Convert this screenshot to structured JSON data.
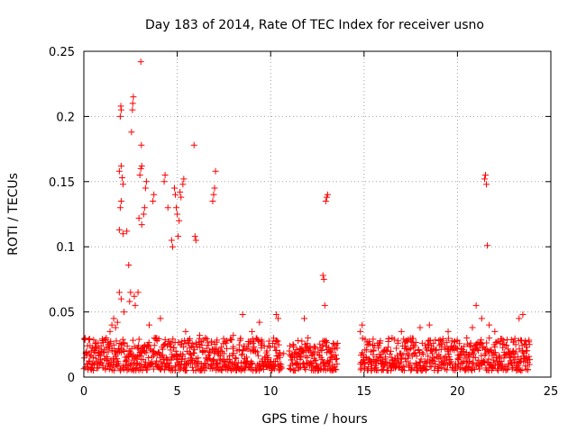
{
  "chart_data": {
    "type": "scatter",
    "title": "Day 183 of 2014, Rate Of TEC Index for receiver usno",
    "xlabel": "GPS time / hours",
    "ylabel": "ROTI / TECUs",
    "xlim": [
      0,
      25
    ],
    "ylim": [
      0,
      0.25
    ],
    "xticks": [
      0,
      5,
      10,
      15,
      20,
      25
    ],
    "xtick_labels": [
      "0",
      "5",
      "10",
      "15",
      "20",
      "25"
    ],
    "yticks": [
      0,
      0.05,
      0.1,
      0.15,
      0.2,
      0.25
    ],
    "ytick_labels": [
      "0",
      "0.05",
      "0.1",
      "0.15",
      "0.2",
      "0.25"
    ],
    "grid": true,
    "marker": "plus",
    "color": "#ff0000",
    "series": [
      {
        "name": "ROTI",
        "points": [
          [
            0.1,
            0.018
          ],
          [
            0.2,
            0.024
          ],
          [
            0.3,
            0.012
          ],
          [
            0.4,
            0.02
          ],
          [
            0.5,
            0.015
          ],
          [
            0.6,
            0.022
          ],
          [
            0.8,
            0.017
          ],
          [
            1.0,
            0.028
          ],
          [
            1.1,
            0.021
          ],
          [
            1.2,
            0.03
          ],
          [
            1.3,
            0.025
          ],
          [
            1.4,
            0.035
          ],
          [
            1.5,
            0.04
          ],
          [
            1.6,
            0.045
          ],
          [
            1.7,
            0.038
          ],
          [
            1.8,
            0.042
          ],
          [
            1.9,
            0.065
          ],
          [
            2.0,
            0.06
          ],
          [
            1.9,
            0.113
          ],
          [
            1.95,
            0.13
          ],
          [
            2.0,
            0.135
          ],
          [
            1.9,
            0.158
          ],
          [
            2.0,
            0.162
          ],
          [
            2.05,
            0.153
          ],
          [
            2.1,
            0.148
          ],
          [
            1.95,
            0.2
          ],
          [
            2.0,
            0.205
          ],
          [
            1.98,
            0.208
          ],
          [
            2.1,
            0.11
          ],
          [
            2.15,
            0.05
          ],
          [
            2.3,
            0.112
          ],
          [
            2.4,
            0.086
          ],
          [
            2.5,
            0.065
          ],
          [
            2.45,
            0.058
          ],
          [
            2.6,
            0.205
          ],
          [
            2.62,
            0.21
          ],
          [
            2.65,
            0.215
          ],
          [
            2.55,
            0.188
          ],
          [
            2.7,
            0.062
          ],
          [
            2.75,
            0.055
          ],
          [
            2.9,
            0.065
          ],
          [
            2.95,
            0.122
          ],
          [
            3.0,
            0.155
          ],
          [
            3.05,
            0.16
          ],
          [
            3.1,
            0.162
          ],
          [
            3.08,
            0.178
          ],
          [
            3.05,
            0.242
          ],
          [
            3.1,
            0.117
          ],
          [
            3.2,
            0.125
          ],
          [
            3.25,
            0.13
          ],
          [
            3.3,
            0.145
          ],
          [
            3.35,
            0.15
          ],
          [
            3.5,
            0.04
          ],
          [
            3.7,
            0.135
          ],
          [
            3.75,
            0.14
          ],
          [
            3.9,
            0.03
          ],
          [
            4.1,
            0.045
          ],
          [
            4.3,
            0.15
          ],
          [
            4.35,
            0.155
          ],
          [
            4.5,
            0.13
          ],
          [
            4.6,
            0.025
          ],
          [
            4.7,
            0.105
          ],
          [
            4.75,
            0.1
          ],
          [
            4.85,
            0.145
          ],
          [
            4.9,
            0.14
          ],
          [
            4.95,
            0.13
          ],
          [
            5.0,
            0.125
          ],
          [
            5.05,
            0.108
          ],
          [
            5.1,
            0.12
          ],
          [
            5.15,
            0.142
          ],
          [
            5.2,
            0.138
          ],
          [
            5.3,
            0.148
          ],
          [
            5.35,
            0.152
          ],
          [
            5.45,
            0.035
          ],
          [
            5.6,
            0.028
          ],
          [
            5.9,
            0.178
          ],
          [
            5.95,
            0.108
          ],
          [
            6.0,
            0.105
          ],
          [
            6.2,
            0.032
          ],
          [
            6.5,
            0.03
          ],
          [
            6.9,
            0.135
          ],
          [
            6.95,
            0.14
          ],
          [
            7.0,
            0.145
          ],
          [
            7.05,
            0.158
          ],
          [
            7.1,
            0.022
          ],
          [
            7.5,
            0.018
          ],
          [
            8.0,
            0.032
          ],
          [
            8.5,
            0.048
          ],
          [
            8.7,
            0.022
          ],
          [
            9.0,
            0.035
          ],
          [
            9.4,
            0.042
          ],
          [
            9.8,
            0.02
          ],
          [
            10.3,
            0.048
          ],
          [
            10.4,
            0.045
          ],
          [
            10.5,
            0.015
          ],
          [
            10.7,
            0.018
          ],
          [
            11.0,
            0.02
          ],
          [
            11.2,
            0.025
          ],
          [
            11.5,
            0.018
          ],
          [
            11.8,
            0.045
          ],
          [
            12.0,
            0.03
          ],
          [
            12.4,
            0.022
          ],
          [
            12.7,
            0.015
          ],
          [
            12.8,
            0.078
          ],
          [
            12.85,
            0.075
          ],
          [
            12.9,
            0.055
          ],
          [
            12.95,
            0.135
          ],
          [
            13.0,
            0.138
          ],
          [
            13.05,
            0.14
          ],
          [
            13.2,
            0.02
          ],
          [
            13.4,
            0.025
          ],
          [
            14.8,
            0.035
          ],
          [
            14.9,
            0.04
          ],
          [
            15.0,
            0.015
          ],
          [
            15.5,
            0.02
          ],
          [
            16.0,
            0.012
          ],
          [
            16.5,
            0.03
          ],
          [
            17.0,
            0.035
          ],
          [
            17.5,
            0.022
          ],
          [
            18.0,
            0.038
          ],
          [
            18.5,
            0.04
          ],
          [
            19.0,
            0.028
          ],
          [
            19.5,
            0.035
          ],
          [
            20.0,
            0.022
          ],
          [
            20.5,
            0.03
          ],
          [
            20.8,
            0.038
          ],
          [
            21.0,
            0.055
          ],
          [
            21.3,
            0.045
          ],
          [
            21.45,
            0.152
          ],
          [
            21.5,
            0.155
          ],
          [
            21.55,
            0.148
          ],
          [
            21.6,
            0.101
          ],
          [
            21.7,
            0.04
          ],
          [
            22.0,
            0.035
          ],
          [
            22.5,
            0.025
          ],
          [
            23.0,
            0.02
          ],
          [
            23.3,
            0.045
          ],
          [
            23.5,
            0.048
          ],
          [
            23.7,
            0.015
          ]
        ],
        "background_band": [
          {
            "x_start": 0.0,
            "x_end": 10.6,
            "y_min": 0.005,
            "y_max": 0.03
          },
          {
            "x_start": 11.0,
            "x_end": 13.6,
            "y_min": 0.005,
            "y_max": 0.028
          },
          {
            "x_start": 14.8,
            "x_end": 23.9,
            "y_min": 0.005,
            "y_max": 0.03
          }
        ]
      }
    ]
  }
}
